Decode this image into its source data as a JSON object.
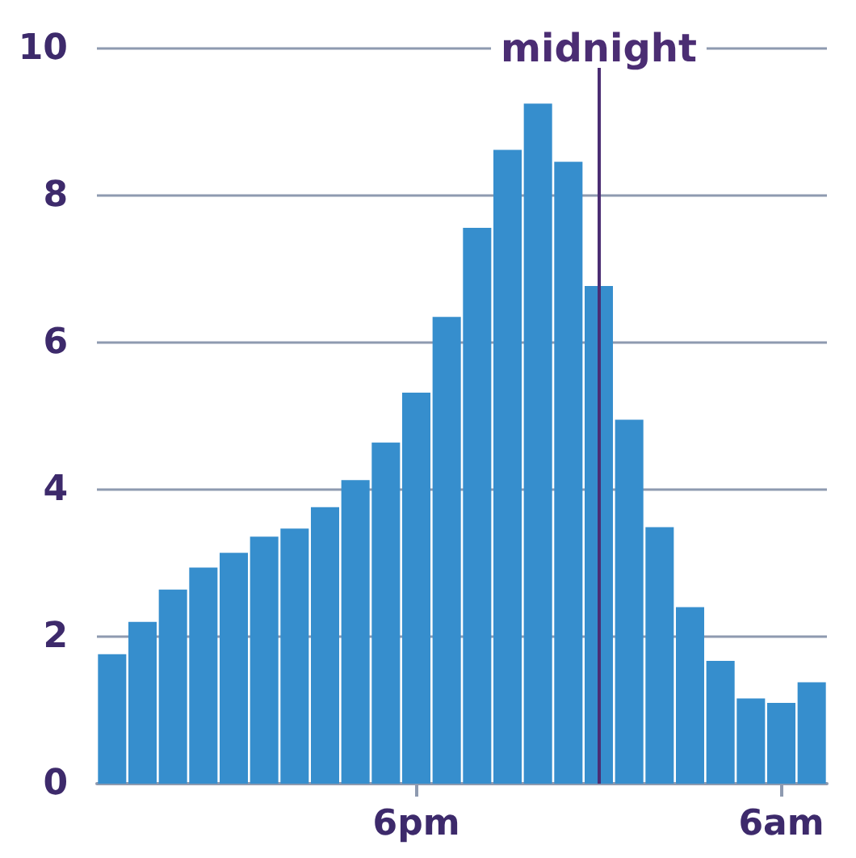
{
  "chart_data": {
    "type": "bar",
    "categories": [
      null,
      null,
      null,
      null,
      null,
      null,
      null,
      null,
      null,
      null,
      "6pm",
      null,
      null,
      null,
      null,
      null,
      null,
      null,
      null,
      null,
      null,
      null,
      "6am",
      null
    ],
    "values": [
      1.76,
      2.2,
      2.64,
      2.94,
      3.14,
      3.36,
      3.47,
      3.76,
      4.13,
      4.64,
      5.32,
      6.35,
      7.56,
      8.62,
      9.25,
      8.46,
      6.77,
      4.95,
      3.49,
      2.4,
      1.67,
      1.16,
      1.1,
      1.38
    ],
    "color": "#368ecd",
    "ylim": [
      0,
      10
    ],
    "yticks": [
      0,
      2,
      4,
      6,
      8,
      10
    ],
    "grid": "y",
    "annotations": [
      "midnight"
    ]
  }
}
